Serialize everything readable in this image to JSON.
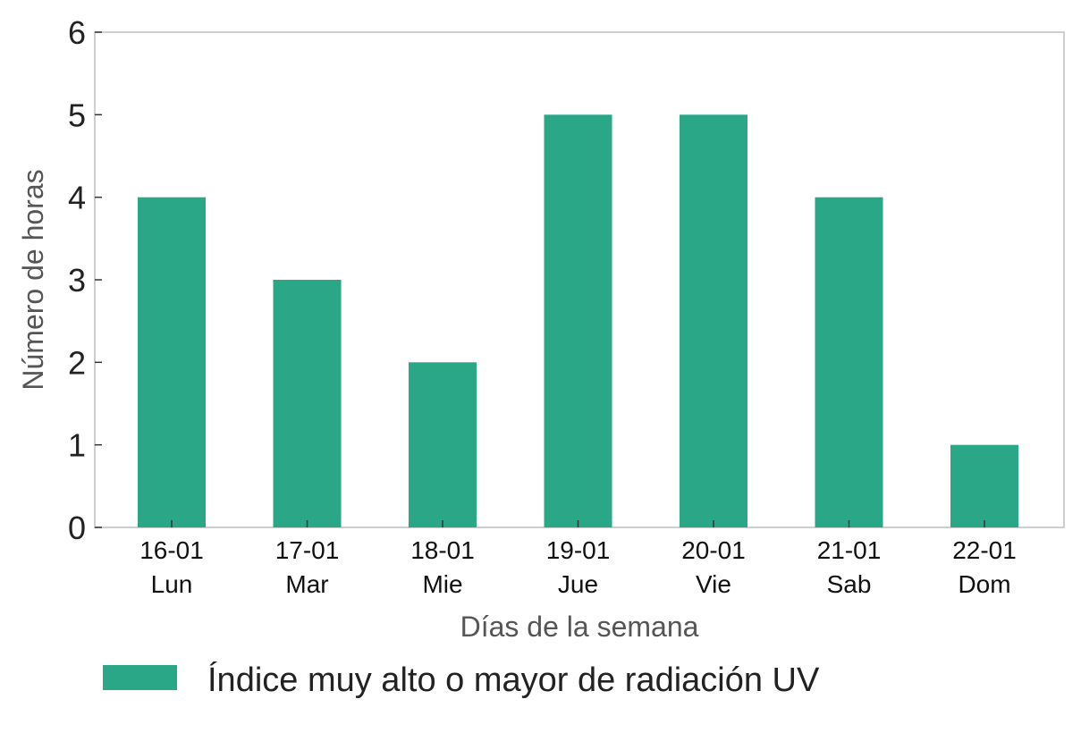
{
  "chart_data": {
    "type": "bar",
    "categories": [
      [
        "16-01",
        "Lun"
      ],
      [
        "17-01",
        "Mar"
      ],
      [
        "18-01",
        "Mie"
      ],
      [
        "19-01",
        "Jue"
      ],
      [
        "20-01",
        "Vie"
      ],
      [
        "21-01",
        "Sab"
      ],
      [
        "22-01",
        "Dom"
      ]
    ],
    "series": [
      {
        "name": "Índice muy alto o mayor de radiación UV",
        "values": [
          4,
          3,
          2,
          5,
          5,
          4,
          1
        ],
        "color": "#29a786"
      }
    ],
    "xlabel": "Días de la semana",
    "ylabel": "Número de horas",
    "ylim": [
      0,
      6
    ],
    "yticks": [
      0,
      1,
      2,
      3,
      4,
      5,
      6
    ],
    "grid": false,
    "legend_position": "bottom-left"
  }
}
